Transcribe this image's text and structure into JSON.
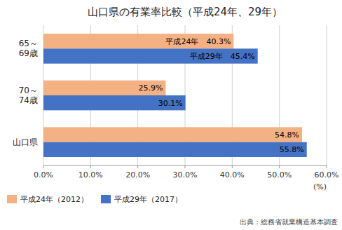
{
  "chart_data": {
    "type": "bar",
    "orientation": "horizontal",
    "title": "山口県の有業率比較（平成24年、29年）",
    "categories": [
      "65～\n69歳",
      "70～\n74歳",
      "山口県"
    ],
    "series": [
      {
        "name": "平成24年（2012）",
        "color": "#F4B183",
        "values": [
          40.3,
          25.9,
          54.8
        ],
        "value_labels": [
          "平成24年　40.3%",
          "25.9%",
          "54.8%"
        ]
      },
      {
        "name": "平成29年（2017）",
        "color": "#4472C4",
        "values": [
          45.4,
          30.1,
          55.8
        ],
        "value_labels": [
          "平成29年　45.4%",
          "30.1%",
          "55.8%"
        ]
      }
    ],
    "xlim": [
      0,
      60
    ],
    "xticks": [
      {
        "value": 0,
        "label": "0.0%"
      },
      {
        "value": 10,
        "label": "10.0%"
      },
      {
        "value": 20,
        "label": "20.0%"
      },
      {
        "value": 30,
        "label": "30.0%"
      },
      {
        "value": 40,
        "label": "40.0%"
      },
      {
        "value": 50,
        "label": "50.0%"
      },
      {
        "value": 60,
        "label": "60.0%"
      }
    ],
    "xlabel": "(%)",
    "annotations": [
      "出典：総務省就業構造基本調査"
    ],
    "grid": true,
    "legend": "bottom",
    "data_labels": true
  }
}
